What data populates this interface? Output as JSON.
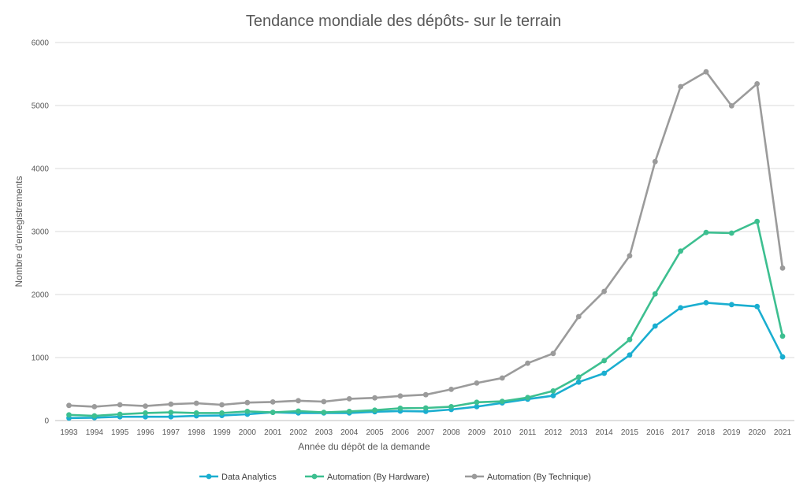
{
  "chart_data": {
    "type": "line",
    "title": "Tendance mondiale des dépôts- sur le terrain",
    "xlabel": "Année du dépôt de la demande",
    "ylabel": "Nombre d'enregistrements",
    "categories": [
      "1993",
      "1994",
      "1995",
      "1996",
      "1997",
      "1998",
      "1999",
      "2000",
      "2001",
      "2002",
      "2003",
      "2004",
      "2005",
      "2006",
      "2007",
      "2008",
      "2009",
      "2010",
      "2011",
      "2012",
      "2013",
      "2014",
      "2015",
      "2016",
      "2017",
      "2018",
      "2019",
      "2020",
      "2021"
    ],
    "ylim": [
      0,
      6000
    ],
    "yticks": [
      0,
      1000,
      2000,
      3000,
      4000,
      5000,
      6000
    ],
    "grid": true,
    "legend_position": "bottom",
    "series": [
      {
        "name": "Data Analytics",
        "color": "#1aaed0",
        "values": [
          40,
          45,
          60,
          60,
          60,
          75,
          80,
          100,
          130,
          120,
          120,
          120,
          140,
          150,
          145,
          175,
          220,
          280,
          340,
          395,
          610,
          750,
          1040,
          1500,
          1790,
          1870,
          1840,
          1810,
          1010
        ]
      },
      {
        "name": "Automation (By Hardware)",
        "color": "#3dbf90",
        "values": [
          90,
          75,
          100,
          120,
          130,
          120,
          120,
          145,
          130,
          150,
          130,
          145,
          165,
          195,
          200,
          220,
          290,
          305,
          365,
          470,
          690,
          950,
          1285,
          2010,
          2690,
          2985,
          2975,
          3160,
          1340
        ]
      },
      {
        "name": "Automation (By Technique)",
        "color": "#9b9b9b",
        "values": [
          240,
          220,
          250,
          230,
          260,
          275,
          250,
          285,
          295,
          315,
          300,
          345,
          360,
          390,
          410,
          495,
          595,
          675,
          910,
          1065,
          1650,
          2050,
          2615,
          4110,
          5300,
          5535,
          4995,
          5345,
          2420
        ]
      }
    ]
  }
}
